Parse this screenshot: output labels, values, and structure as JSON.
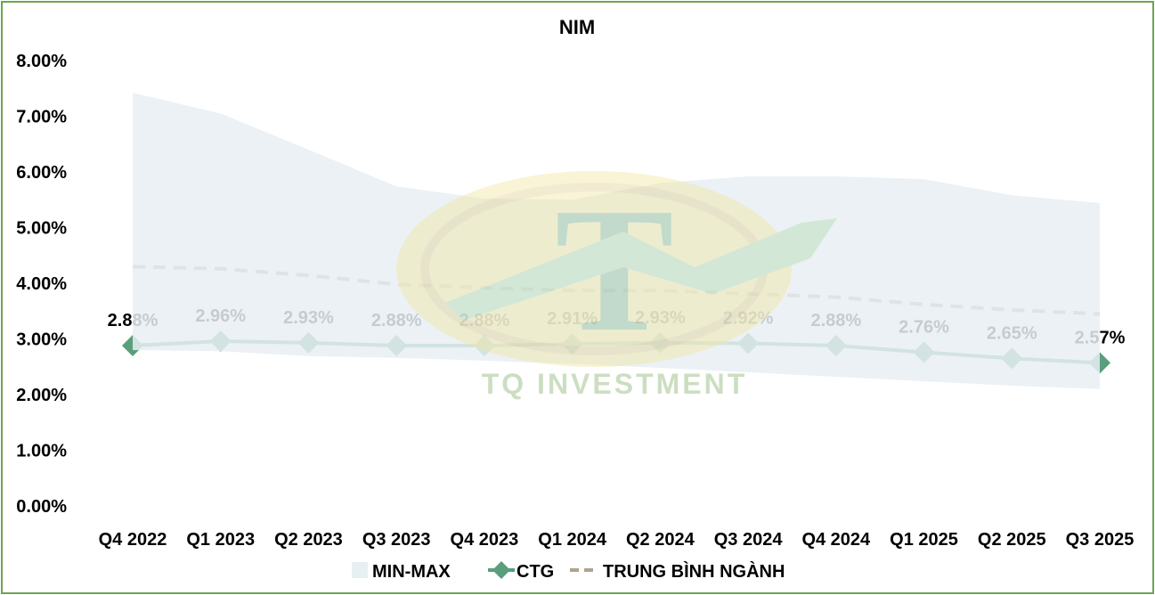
{
  "chart_data": {
    "type": "line",
    "title": "NIM",
    "categories": [
      "Q4 2022",
      "Q1 2023",
      "Q2 2023",
      "Q3 2023",
      "Q4 2023",
      "Q1 2024",
      "Q2 2024",
      "Q3 2024",
      "Q4 2024",
      "Q1 2025",
      "Q2 2025",
      "Q3 2025"
    ],
    "yticks": [
      "0.00%",
      "1.00%",
      "2.00%",
      "3.00%",
      "4.00%",
      "5.00%",
      "6.00%",
      "7.00%",
      "8.00%"
    ],
    "ylim": [
      0,
      8
    ],
    "unit": "%",
    "grid": false,
    "legend_position": "bottom",
    "series": [
      {
        "name": "MIN-MAX",
        "kind": "band",
        "color": "#e8eff3",
        "max": [
          7.42,
          7.05,
          6.4,
          5.74,
          5.52,
          5.5,
          5.8,
          5.92,
          5.92,
          5.87,
          5.58,
          5.44
        ],
        "min": [
          2.8,
          2.78,
          2.69,
          2.66,
          2.61,
          2.55,
          2.48,
          2.4,
          2.32,
          2.24,
          2.16,
          2.1
        ]
      },
      {
        "name": "CTG",
        "kind": "line-marker",
        "color": "#5a9e7c",
        "values": [
          2.88,
          2.96,
          2.93,
          2.88,
          2.88,
          2.91,
          2.93,
          2.92,
          2.88,
          2.76,
          2.65,
          2.57
        ],
        "labels": [
          "2.88%",
          "2.96%",
          "2.93%",
          "2.88%",
          "2.88%",
          "2.91%",
          "2.93%",
          "2.92%",
          "2.88%",
          "2.76%",
          "2.65%",
          "2.57%"
        ]
      },
      {
        "name": "TRUNG BÌNH NGÀNH",
        "kind": "dashed",
        "color": "#b0a38f",
        "values": [
          4.3,
          4.26,
          4.14,
          3.98,
          3.92,
          3.87,
          3.87,
          3.81,
          3.75,
          3.62,
          3.52,
          3.45
        ]
      }
    ]
  },
  "watermark": {
    "text": "TQ INVESTMENT",
    "letter": "T"
  }
}
